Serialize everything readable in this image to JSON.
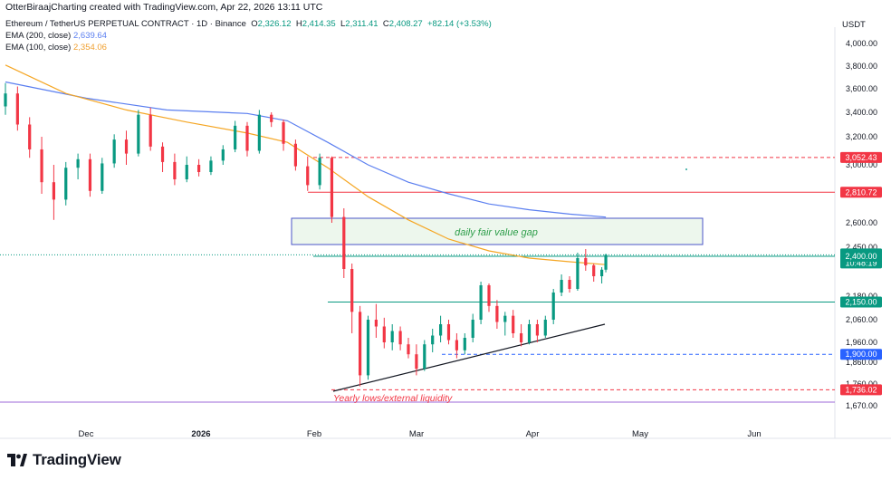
{
  "header": {
    "created_line": "OtterBiraajCharting created with TradingView.com, Apr 22, 2026 13:11 UTC"
  },
  "legend": {
    "symbol": "Ethereum / TetherUS PERPETUAL CONTRACT · 1D · Binance",
    "ohlc": {
      "o_label": "O",
      "o": "2,326.12",
      "h_label": "H",
      "h": "2,414.35",
      "l_label": "L",
      "l": "2,311.41",
      "c_label": "C",
      "c": "2,408.27",
      "change": "+82.14 (+3.53%)"
    },
    "ema200_label": "EMA (200, close)",
    "ema200_value": "2,639.64",
    "ema100_label": "EMA (100, close)",
    "ema100_value": "2,354.06"
  },
  "currency": "USDT",
  "brand": "TradingView",
  "chart_data": {
    "type": "candlestick",
    "x_labels": [
      "Dec",
      "2026",
      "Feb",
      "Mar",
      "Apr",
      "May",
      "Jun"
    ],
    "y_ticks": [
      4000,
      3800,
      3600,
      3400,
      3200,
      3000,
      2600,
      2450,
      2180,
      2060,
      1960,
      1860,
      1760,
      1670
    ],
    "y_tick_labels": [
      "4,000.00",
      "3,800.00",
      "3,600.00",
      "3,400.00",
      "3,200.00",
      "3,000.00",
      "2,600.00",
      "2,450.00",
      "2,180.00",
      "2,060.00",
      "1,960.00",
      "1,860.00",
      "1,760.00",
      "1,670.00"
    ],
    "price_tags": [
      {
        "price": 3052.43,
        "label": "3,052.43",
        "color": "#f23645"
      },
      {
        "price": 2810.72,
        "label": "2,810.72",
        "color": "#f23645"
      },
      {
        "price": 2408.27,
        "label": "2,408.27",
        "sub": "10:48:19",
        "color": "#089981"
      },
      {
        "price": 2400.0,
        "label": "2,400.00",
        "color": "#089981"
      },
      {
        "price": 2150.0,
        "label": "2,150.00",
        "color": "#089981"
      },
      {
        "price": 1900.0,
        "label": "1,900.00",
        "color": "#2962ff"
      },
      {
        "price": 1736.02,
        "label": "1,736.02",
        "color": "#f23645"
      }
    ],
    "annotations": [
      {
        "text": "daily fair value gap",
        "color": "#2e9e4a"
      },
      {
        "text": "Yearly lows/external liquidity",
        "color": "#f23645"
      }
    ],
    "candles": [
      {
        "d": 0,
        "o": 3450,
        "h": 3650,
        "l": 3380,
        "c": 3560
      },
      {
        "d": 3,
        "o": 3560,
        "h": 3620,
        "l": 3250,
        "c": 3300
      },
      {
        "d": 6,
        "o": 3300,
        "h": 3360,
        "l": 3050,
        "c": 3110
      },
      {
        "d": 9,
        "o": 3110,
        "h": 3200,
        "l": 2800,
        "c": 2880
      },
      {
        "d": 12,
        "o": 2880,
        "h": 3000,
        "l": 2620,
        "c": 2760
      },
      {
        "d": 15,
        "o": 2760,
        "h": 3020,
        "l": 2720,
        "c": 2980
      },
      {
        "d": 18,
        "o": 2980,
        "h": 3080,
        "l": 2900,
        "c": 3040
      },
      {
        "d": 21,
        "o": 3040,
        "h": 3080,
        "l": 2780,
        "c": 2820
      },
      {
        "d": 24,
        "o": 2820,
        "h": 3050,
        "l": 2800,
        "c": 3010
      },
      {
        "d": 27,
        "o": 3010,
        "h": 3220,
        "l": 2980,
        "c": 3180
      },
      {
        "d": 30,
        "o": 3180,
        "h": 3250,
        "l": 3000,
        "c": 3080
      },
      {
        "d": 33,
        "o": 3080,
        "h": 3420,
        "l": 3060,
        "c": 3380
      },
      {
        "d": 36,
        "o": 3380,
        "h": 3440,
        "l": 3100,
        "c": 3130
      },
      {
        "d": 39,
        "o": 3130,
        "h": 3160,
        "l": 2950,
        "c": 3020
      },
      {
        "d": 42,
        "o": 3020,
        "h": 3080,
        "l": 2860,
        "c": 2900
      },
      {
        "d": 45,
        "o": 2900,
        "h": 3060,
        "l": 2880,
        "c": 3000
      },
      {
        "d": 48,
        "o": 3000,
        "h": 3040,
        "l": 2920,
        "c": 2950
      },
      {
        "d": 51,
        "o": 2950,
        "h": 3060,
        "l": 2930,
        "c": 3030
      },
      {
        "d": 54,
        "o": 3030,
        "h": 3140,
        "l": 3000,
        "c": 3110
      },
      {
        "d": 57,
        "o": 3110,
        "h": 3330,
        "l": 3090,
        "c": 3290
      },
      {
        "d": 60,
        "o": 3290,
        "h": 3320,
        "l": 3060,
        "c": 3100
      },
      {
        "d": 63,
        "o": 3100,
        "h": 3420,
        "l": 3080,
        "c": 3380
      },
      {
        "d": 66,
        "o": 3380,
        "h": 3400,
        "l": 3280,
        "c": 3320
      },
      {
        "d": 69,
        "o": 3320,
        "h": 3340,
        "l": 3100,
        "c": 3150
      },
      {
        "d": 72,
        "o": 3150,
        "h": 3180,
        "l": 2960,
        "c": 2990
      },
      {
        "d": 75,
        "o": 2990,
        "h": 3060,
        "l": 2820,
        "c": 2860
      },
      {
        "d": 78,
        "o": 2860,
        "h": 3080,
        "l": 2830,
        "c": 3050
      },
      {
        "d": 81,
        "o": 3050,
        "h": 3060,
        "l": 2600,
        "c": 2640
      },
      {
        "d": 84,
        "o": 2640,
        "h": 2700,
        "l": 2280,
        "c": 2330
      },
      {
        "d": 86,
        "o": 2330,
        "h": 2360,
        "l": 2000,
        "c": 2100
      },
      {
        "d": 88,
        "o": 2100,
        "h": 2130,
        "l": 1750,
        "c": 1800
      },
      {
        "d": 90,
        "o": 1800,
        "h": 2080,
        "l": 1780,
        "c": 2060
      },
      {
        "d": 92,
        "o": 2060,
        "h": 2140,
        "l": 1980,
        "c": 2030
      },
      {
        "d": 94,
        "o": 2030,
        "h": 2070,
        "l": 1930,
        "c": 1960
      },
      {
        "d": 96,
        "o": 1960,
        "h": 2040,
        "l": 1920,
        "c": 2010
      },
      {
        "d": 98,
        "o": 2010,
        "h": 2030,
        "l": 1920,
        "c": 1950
      },
      {
        "d": 100,
        "o": 1950,
        "h": 1980,
        "l": 1880,
        "c": 1900
      },
      {
        "d": 102,
        "o": 1900,
        "h": 1950,
        "l": 1800,
        "c": 1830
      },
      {
        "d": 104,
        "o": 1830,
        "h": 1970,
        "l": 1820,
        "c": 1950
      },
      {
        "d": 106,
        "o": 1950,
        "h": 2020,
        "l": 1910,
        "c": 1990
      },
      {
        "d": 108,
        "o": 1990,
        "h": 2080,
        "l": 1960,
        "c": 2040
      },
      {
        "d": 110,
        "o": 2040,
        "h": 2060,
        "l": 1950,
        "c": 1970
      },
      {
        "d": 112,
        "o": 1970,
        "h": 2000,
        "l": 1880,
        "c": 1920
      },
      {
        "d": 114,
        "o": 1920,
        "h": 2000,
        "l": 1900,
        "c": 1980
      },
      {
        "d": 116,
        "o": 1980,
        "h": 2090,
        "l": 1960,
        "c": 2060
      },
      {
        "d": 118,
        "o": 2060,
        "h": 2260,
        "l": 2040,
        "c": 2240
      },
      {
        "d": 120,
        "o": 2240,
        "h": 2250,
        "l": 2100,
        "c": 2130
      },
      {
        "d": 122,
        "o": 2130,
        "h": 2160,
        "l": 2020,
        "c": 2050
      },
      {
        "d": 124,
        "o": 2050,
        "h": 2100,
        "l": 1990,
        "c": 2080
      },
      {
        "d": 126,
        "o": 2080,
        "h": 2110,
        "l": 1980,
        "c": 2000
      },
      {
        "d": 128,
        "o": 2000,
        "h": 2040,
        "l": 1940,
        "c": 1960
      },
      {
        "d": 130,
        "o": 1960,
        "h": 2060,
        "l": 1950,
        "c": 2040
      },
      {
        "d": 132,
        "o": 2040,
        "h": 2060,
        "l": 1960,
        "c": 1990
      },
      {
        "d": 134,
        "o": 1990,
        "h": 2080,
        "l": 1980,
        "c": 2060
      },
      {
        "d": 136,
        "o": 2060,
        "h": 2220,
        "l": 2040,
        "c": 2200
      },
      {
        "d": 138,
        "o": 2200,
        "h": 2300,
        "l": 2180,
        "c": 2270
      },
      {
        "d": 140,
        "o": 2270,
        "h": 2290,
        "l": 2200,
        "c": 2220
      },
      {
        "d": 142,
        "o": 2220,
        "h": 2420,
        "l": 2210,
        "c": 2390
      },
      {
        "d": 144,
        "o": 2390,
        "h": 2440,
        "l": 2320,
        "c": 2350
      },
      {
        "d": 146,
        "o": 2350,
        "h": 2360,
        "l": 2260,
        "c": 2290
      },
      {
        "d": 148,
        "o": 2290,
        "h": 2340,
        "l": 2250,
        "c": 2326
      },
      {
        "d": 149,
        "o": 2326.12,
        "h": 2414.35,
        "l": 2311.41,
        "c": 2408.27
      }
    ],
    "ema200": [
      [
        0,
        3660
      ],
      [
        20,
        3520
      ],
      [
        40,
        3420
      ],
      [
        60,
        3390
      ],
      [
        70,
        3330
      ],
      [
        80,
        3160
      ],
      [
        90,
        3000
      ],
      [
        100,
        2880
      ],
      [
        110,
        2800
      ],
      [
        120,
        2730
      ],
      [
        130,
        2690
      ],
      [
        140,
        2660
      ],
      [
        149,
        2639.64
      ]
    ],
    "ema100": [
      [
        0,
        3810
      ],
      [
        15,
        3560
      ],
      [
        30,
        3420
      ],
      [
        45,
        3320
      ],
      [
        60,
        3230
      ],
      [
        70,
        3160
      ],
      [
        80,
        2980
      ],
      [
        90,
        2780
      ],
      [
        100,
        2620
      ],
      [
        110,
        2500
      ],
      [
        120,
        2430
      ],
      [
        130,
        2390
      ],
      [
        140,
        2370
      ],
      [
        149,
        2354.06
      ]
    ]
  }
}
